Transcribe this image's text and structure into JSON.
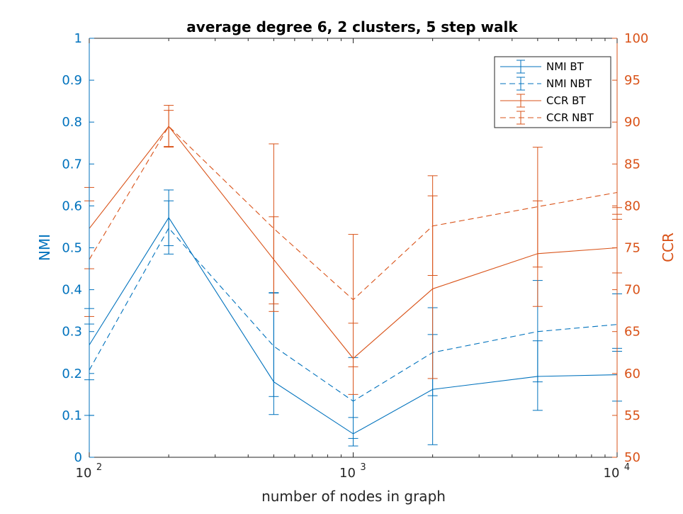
{
  "chart_data": {
    "type": "line",
    "title": "average degree 6, 2 clusters, 5 step walk",
    "xlabel": "number of nodes in graph",
    "ylabel_left": "NMI",
    "ylabel_right": "CCR",
    "x_scale": "log",
    "xlim": [
      100,
      10000
    ],
    "ylim_left": [
      0,
      1
    ],
    "ylim_right": [
      50,
      100
    ],
    "x": [
      100,
      200,
      500,
      1000,
      2000,
      5000,
      10000
    ],
    "x_ticks": [
      100,
      1000,
      10000
    ],
    "x_tick_labels": [
      {
        "base": "10",
        "exp": "2"
      },
      {
        "base": "10",
        "exp": "3"
      },
      {
        "base": "10",
        "exp": "4"
      }
    ],
    "y_left_ticks": [
      "0",
      "0.1",
      "0.2",
      "0.3",
      "0.4",
      "0.5",
      "0.6",
      "0.7",
      "0.8",
      "0.9",
      "1"
    ],
    "y_right_ticks": [
      "50",
      "55",
      "60",
      "65",
      "70",
      "75",
      "80",
      "85",
      "90",
      "95",
      "100"
    ],
    "legend_position": "top-right",
    "colors": {
      "left_axis": "#0072BD",
      "right_axis": "#D95319",
      "axes": "#262626"
    },
    "series": [
      {
        "name": "NMI BT",
        "axis": "left",
        "line": "solid",
        "color": "#0072BD",
        "values": [
          0.268,
          0.572,
          0.18,
          0.056,
          0.162,
          0.193,
          0.197
        ],
        "lower": [
          0.185,
          0.505,
          0.102,
          0.027,
          0.03,
          0.112,
          0.134
        ],
        "upper": [
          0.355,
          0.638,
          0.392,
          0.095,
          0.357,
          0.278,
          0.26
        ]
      },
      {
        "name": "NMI NBT",
        "axis": "left",
        "line": "dashed",
        "color": "#0072BD",
        "values": [
          0.208,
          0.547,
          0.265,
          0.134,
          0.25,
          0.3,
          0.317
        ],
        "lower": [
          0.1,
          0.485,
          0.145,
          0.045,
          0.147,
          0.18,
          0.253
        ],
        "upper": [
          0.318,
          0.612,
          0.393,
          0.238,
          0.293,
          0.422,
          0.39
        ]
      },
      {
        "name": "CCR BT",
        "axis": "right",
        "line": "solid",
        "color": "#D95319",
        "values": [
          77.3,
          89.5,
          73.6,
          61.8,
          70.1,
          74.3,
          75.0
        ],
        "lower": [
          72.5,
          87.1,
          67.4,
          57.5,
          59.4,
          68.0,
          72.0
        ],
        "upper": [
          82.2,
          91.4,
          78.7,
          66.0,
          81.2,
          80.6,
          79.0
        ]
      },
      {
        "name": "CCR NBT",
        "axis": "right",
        "line": "dashed",
        "color": "#D95319",
        "values": [
          73.6,
          89.5,
          77.3,
          68.8,
          77.6,
          79.9,
          81.6
        ],
        "lower": [
          66.8,
          87.0,
          68.3,
          60.8,
          71.7,
          72.7,
          78.4
        ],
        "upper": [
          80.6,
          92.0,
          87.4,
          76.6,
          83.6,
          87.0,
          79.8
        ]
      }
    ]
  }
}
